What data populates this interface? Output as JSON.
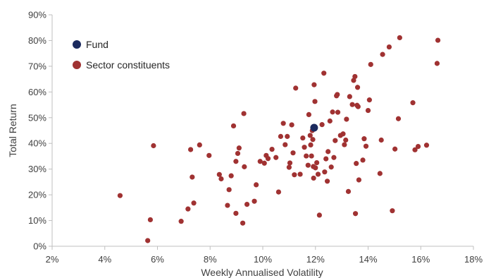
{
  "chart_data": {
    "type": "scatter",
    "xlabel": "Weekly Annualised Volatility",
    "ylabel": "Total Return",
    "xlim": [
      0.02,
      0.18
    ],
    "ylim": [
      0.0,
      0.9
    ],
    "x_ticks": [
      "2%",
      "4%",
      "6%",
      "8%",
      "10%",
      "12%",
      "14%",
      "16%",
      "18%"
    ],
    "y_ticks": [
      "0%",
      "10%",
      "20%",
      "30%",
      "40%",
      "50%",
      "60%",
      "70%",
      "80%",
      "90%"
    ],
    "grid": false,
    "legend": {
      "position": "top-left"
    },
    "series": [
      {
        "name": "Fund",
        "color": "#1b2a5e",
        "points": [
          [
            0.1195,
            0.461
          ]
        ]
      },
      {
        "name": "Sector constituents",
        "color": "#a03232",
        "points": [
          [
            0.0458,
            0.197
          ],
          [
            0.0563,
            0.022
          ],
          [
            0.0573,
            0.103
          ],
          [
            0.0585,
            0.391
          ],
          [
            0.069,
            0.097
          ],
          [
            0.0716,
            0.145
          ],
          [
            0.0726,
            0.376
          ],
          [
            0.0732,
            0.269
          ],
          [
            0.0738,
            0.168
          ],
          [
            0.076,
            0.394
          ],
          [
            0.0796,
            0.353
          ],
          [
            0.0835,
            0.279
          ],
          [
            0.0842,
            0.262
          ],
          [
            0.0866,
            0.159
          ],
          [
            0.0872,
            0.22
          ],
          [
            0.088,
            0.274
          ],
          [
            0.0889,
            0.468
          ],
          [
            0.0898,
            0.33
          ],
          [
            0.0898,
            0.128
          ],
          [
            0.0905,
            0.361
          ],
          [
            0.091,
            0.382
          ],
          [
            0.0924,
            0.09
          ],
          [
            0.0928,
            0.516
          ],
          [
            0.093,
            0.309
          ],
          [
            0.094,
            0.163
          ],
          [
            0.0968,
            0.175
          ],
          [
            0.0975,
            0.239
          ],
          [
            0.099,
            0.33
          ],
          [
            0.1006,
            0.323
          ],
          [
            0.1013,
            0.353
          ],
          [
            0.102,
            0.341
          ],
          [
            0.1035,
            0.377
          ],
          [
            0.105,
            0.345
          ],
          [
            0.106,
            0.211
          ],
          [
            0.1068,
            0.427
          ],
          [
            0.1078,
            0.478
          ],
          [
            0.1085,
            0.395
          ],
          [
            0.1093,
            0.427
          ],
          [
            0.11,
            0.307
          ],
          [
            0.1103,
            0.324
          ],
          [
            0.111,
            0.472
          ],
          [
            0.1115,
            0.363
          ],
          [
            0.112,
            0.278
          ],
          [
            0.1125,
            0.615
          ],
          [
            0.1142,
            0.28
          ],
          [
            0.1152,
            0.421
          ],
          [
            0.1158,
            0.385
          ],
          [
            0.1165,
            0.351
          ],
          [
            0.1172,
            0.315
          ],
          [
            0.1175,
            0.512
          ],
          [
            0.118,
            0.431
          ],
          [
            0.1182,
            0.394
          ],
          [
            0.1185,
            0.351
          ],
          [
            0.1188,
            0.45
          ],
          [
            0.119,
            0.415
          ],
          [
            0.1192,
            0.31
          ],
          [
            0.1193,
            0.265
          ],
          [
            0.1195,
            0.628
          ],
          [
            0.1198,
            0.563
          ],
          [
            0.12,
            0.305
          ],
          [
            0.1205,
            0.325
          ],
          [
            0.121,
            0.28
          ],
          [
            0.1215,
            0.121
          ],
          [
            0.1225,
            0.473
          ],
          [
            0.1232,
            0.673
          ],
          [
            0.1235,
            0.289
          ],
          [
            0.124,
            0.34
          ],
          [
            0.1245,
            0.253
          ],
          [
            0.1248,
            0.368
          ],
          [
            0.1255,
            0.487
          ],
          [
            0.126,
            0.308
          ],
          [
            0.1265,
            0.522
          ],
          [
            0.127,
            0.345
          ],
          [
            0.1275,
            0.411
          ],
          [
            0.128,
            0.585
          ],
          [
            0.1283,
            0.59
          ],
          [
            0.1285,
            0.521
          ],
          [
            0.1295,
            0.431
          ],
          [
            0.1305,
            0.437
          ],
          [
            0.131,
            0.395
          ],
          [
            0.1315,
            0.413
          ],
          [
            0.1318,
            0.494
          ],
          [
            0.1325,
            0.213
          ],
          [
            0.133,
            0.582
          ],
          [
            0.134,
            0.551
          ],
          [
            0.1345,
            0.645
          ],
          [
            0.135,
            0.66
          ],
          [
            0.1352,
            0.127
          ],
          [
            0.1355,
            0.322
          ],
          [
            0.1358,
            0.548
          ],
          [
            0.136,
            0.618
          ],
          [
            0.1362,
            0.543
          ],
          [
            0.1365,
            0.258
          ],
          [
            0.138,
            0.335
          ],
          [
            0.1385,
            0.418
          ],
          [
            0.1392,
            0.389
          ],
          [
            0.14,
            0.528
          ],
          [
            0.1405,
            0.569
          ],
          [
            0.141,
            0.707
          ],
          [
            0.1445,
            0.283
          ],
          [
            0.145,
            0.413
          ],
          [
            0.1455,
            0.746
          ],
          [
            0.148,
            0.775
          ],
          [
            0.1492,
            0.138
          ],
          [
            0.1502,
            0.378
          ],
          [
            0.1515,
            0.496
          ],
          [
            0.152,
            0.811
          ],
          [
            0.157,
            0.558
          ],
          [
            0.1578,
            0.375
          ],
          [
            0.159,
            0.388
          ],
          [
            0.1622,
            0.393
          ],
          [
            0.1662,
            0.711
          ],
          [
            0.1665,
            0.801
          ]
        ]
      }
    ]
  }
}
